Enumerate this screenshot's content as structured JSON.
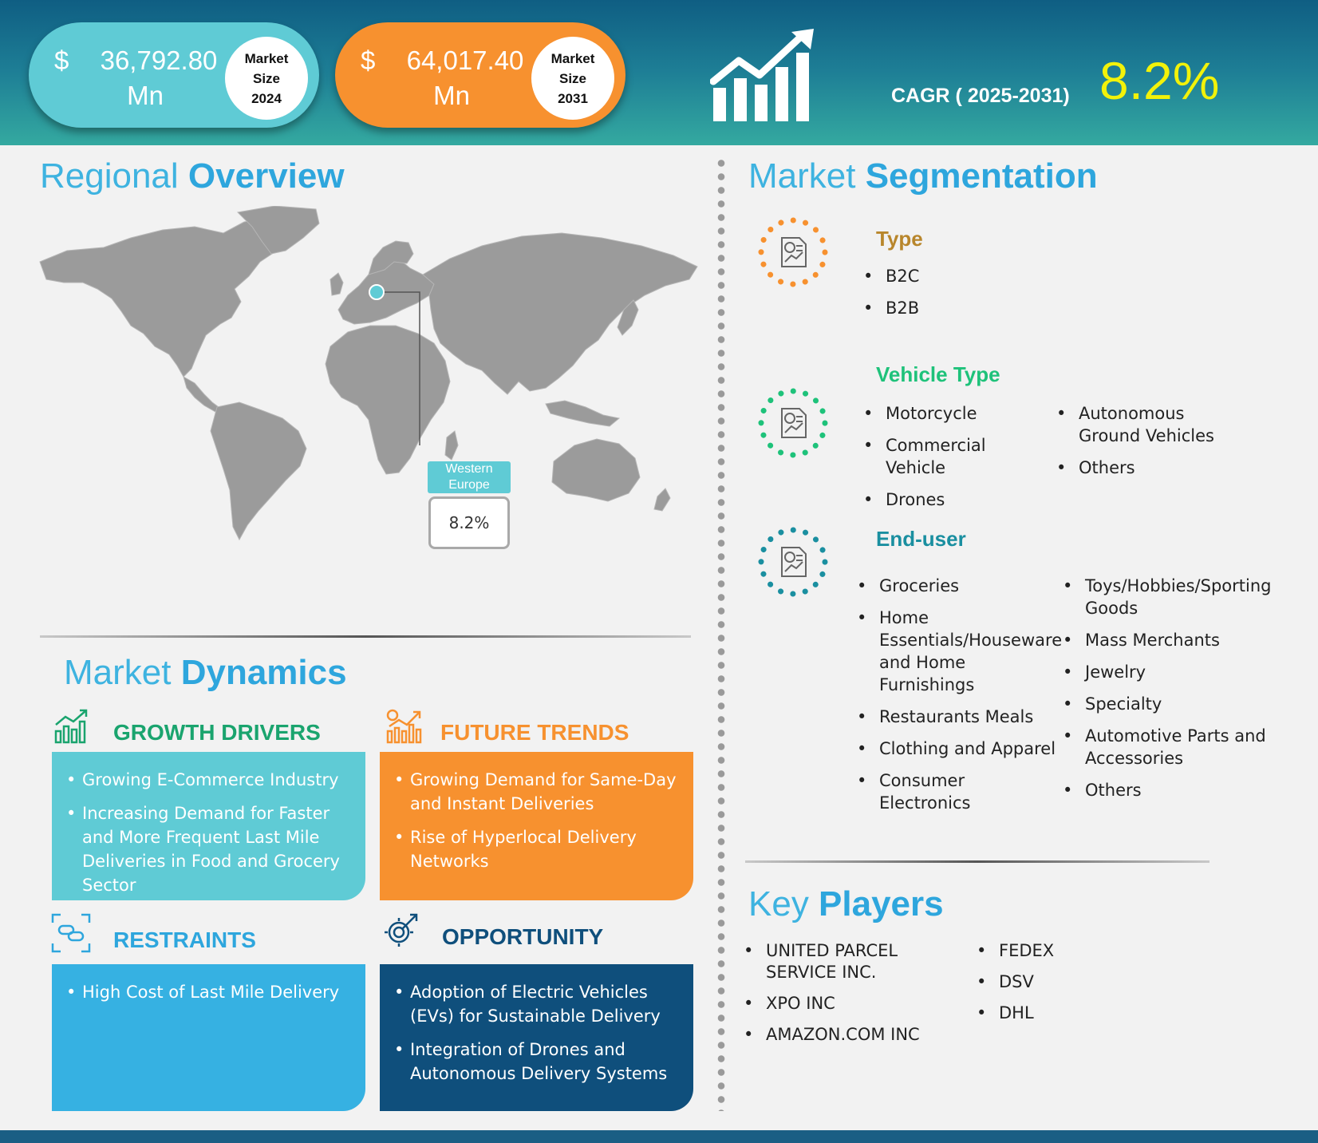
{
  "header": {
    "market_2024": {
      "currency": "$",
      "value": "36,792.80",
      "unit": "Mn",
      "label_line1": "Market",
      "label_line2": "Size",
      "year": "2024"
    },
    "market_2031": {
      "currency": "$",
      "value": "64,017.40",
      "unit": "Mn",
      "label_line1": "Market",
      "label_line2": "Size",
      "year": "2031"
    },
    "cagr_label": "CAGR ( 2025-2031)",
    "cagr_value": "8.2%"
  },
  "regional": {
    "title_light": "Regional ",
    "title_bold": "Overview",
    "callout_label_line1": "Western",
    "callout_label_line2": "Europe",
    "callout_value": "8.2%"
  },
  "dynamics": {
    "title_light": "Market ",
    "title_bold": "Dynamics",
    "growth": {
      "heading": "GROWTH DRIVERS",
      "items": [
        "Growing E-Commerce Industry",
        "Increasing Demand for Faster and More Frequent Last Mile Deliveries in Food and Grocery Sector"
      ]
    },
    "trends": {
      "heading": "FUTURE TRENDS",
      "items": [
        "Growing Demand for Same-Day and Instant Deliveries",
        "Rise of Hyperlocal Delivery Networks"
      ]
    },
    "restraints": {
      "heading": "RESTRAINTS",
      "items": [
        "High Cost of Last Mile Delivery"
      ]
    },
    "opportunity": {
      "heading": "OPPORTUNITY",
      "items": [
        "Adoption of Electric Vehicles (EVs) for Sustainable Delivery",
        "Integration of Drones and Autonomous Delivery Systems"
      ]
    }
  },
  "segmentation": {
    "title_light": "Market ",
    "title_bold": "Segmentation",
    "type": {
      "heading": "Type",
      "items": [
        "B2C",
        "B2B"
      ]
    },
    "vehicle": {
      "heading": "Vehicle Type",
      "col1": [
        "Motorcycle",
        "Commercial Vehicle",
        "Drones"
      ],
      "col2": [
        "Autonomous Ground Vehicles",
        "Others"
      ]
    },
    "enduser": {
      "heading": "End-user",
      "col1": [
        "Groceries",
        "Home Essentials/Houseware and Home Furnishings",
        "Restaurants Meals",
        "Clothing and Apparel",
        "Consumer Electronics"
      ],
      "col2": [
        "Toys/Hobbies/Sporting Goods",
        "Mass Merchants",
        "Jewelry",
        "Specialty",
        "Automotive Parts and Accessories",
        "Others"
      ]
    }
  },
  "players": {
    "title_light": "Key ",
    "title_bold": "Players",
    "col1": [
      "UNITED PARCEL SERVICE INC.",
      "XPO INC",
      "AMAZON.COM INC"
    ],
    "col2": [
      "FEDEX",
      "DSV",
      "DHL"
    ]
  },
  "colors": {
    "cyan": "#5fcbd5",
    "orange": "#f7912f",
    "blue": "#36b1e2",
    "navy": "#0f4f7c",
    "yellow": "#f2f20a",
    "title_blue": "#2ea6dd"
  }
}
